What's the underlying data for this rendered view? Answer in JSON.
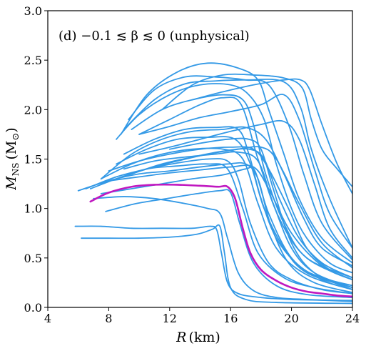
{
  "chart_data": {
    "type": "line",
    "annotation": "(d) −0.1 ≲ β ≲ 0 (unphysical)",
    "xlabel_main": "R",
    "xlabel_unit": "(km)",
    "ylabel_main": "M",
    "ylabel_sub": "NS",
    "ylabel_unit": "(M",
    "ylabel_unit_sym": "⊙",
    "ylabel_close": ")",
    "xlim": [
      4,
      24
    ],
    "ylim": [
      0.0,
      3.0
    ],
    "xticks": [
      4,
      8,
      12,
      16,
      20,
      24
    ],
    "yticks": [
      0.0,
      0.5,
      1.0,
      1.5,
      2.0,
      2.5,
      3.0
    ],
    "grid": false,
    "colors": {
      "family": "#3399e6",
      "highlight": "#c018c0"
    },
    "series": [
      {
        "style": "family",
        "x": [
          8.8,
          10.5,
          12.5,
          14.5,
          16.5,
          17.8,
          18.5,
          19.5,
          20.5,
          22,
          24
        ],
        "y": [
          1.75,
          2.15,
          2.38,
          2.47,
          2.42,
          2.3,
          2.0,
          1.55,
          1.1,
          0.7,
          0.45
        ]
      },
      {
        "style": "family",
        "x": [
          9.3,
          11,
          13,
          15,
          17,
          18.5,
          19.8,
          20.8,
          22,
          24
        ],
        "y": [
          1.9,
          2.2,
          2.33,
          2.33,
          2.3,
          2.25,
          1.85,
          1.35,
          0.85,
          0.48
        ]
      },
      {
        "style": "family",
        "x": [
          9,
          11,
          13,
          15,
          17,
          19.5,
          20.6,
          21.3,
          22.5,
          24
        ],
        "y": [
          1.8,
          2.1,
          2.26,
          2.29,
          2.3,
          2.28,
          2.02,
          1.6,
          1.1,
          0.6
        ]
      },
      {
        "style": "family",
        "x": [
          11.5,
          13.5,
          15.5,
          17.5,
          19.5,
          20.7,
          21.3,
          22,
          23,
          24
        ],
        "y": [
          2.0,
          2.25,
          2.35,
          2.35,
          2.32,
          2.22,
          1.9,
          1.6,
          1.4,
          1.22
        ]
      },
      {
        "style": "family",
        "x": [
          8.5,
          10,
          12,
          14,
          16,
          17.2,
          18.2,
          19,
          20,
          21,
          22.5,
          24
        ],
        "y": [
          1.7,
          1.95,
          2.15,
          2.25,
          2.25,
          2.15,
          1.9,
          1.45,
          1.0,
          0.7,
          0.45,
          0.35
        ]
      },
      {
        "style": "family",
        "x": [
          9.5,
          11.5,
          13.5,
          15.5,
          16.8,
          17.5,
          18.3,
          19.5,
          21,
          24
        ],
        "y": [
          1.8,
          2.0,
          2.1,
          2.15,
          2.1,
          1.85,
          1.35,
          0.85,
          0.5,
          0.3
        ]
      },
      {
        "style": "family",
        "x": [
          10,
          12,
          14,
          15.5,
          16.7,
          17.8,
          19.2,
          21,
          24
        ],
        "y": [
          1.75,
          1.9,
          2.05,
          2.12,
          2.05,
          1.5,
          0.9,
          0.5,
          0.28
        ]
      },
      {
        "style": "family",
        "x": [
          9,
          11,
          13,
          15,
          16.5,
          17.2,
          18,
          19,
          20.5,
          22,
          24
        ],
        "y": [
          1.55,
          1.7,
          1.8,
          1.82,
          1.8,
          1.55,
          1.1,
          0.7,
          0.42,
          0.3,
          0.22
        ]
      },
      {
        "style": "family",
        "x": [
          7.5,
          9.5,
          11.5,
          13.5,
          15.5,
          17,
          18.3,
          19.5,
          20.8,
          22,
          24
        ],
        "y": [
          1.3,
          1.55,
          1.7,
          1.78,
          1.8,
          1.82,
          1.7,
          1.35,
          0.9,
          0.6,
          0.42
        ]
      },
      {
        "style": "family",
        "x": [
          10,
          12,
          14,
          16,
          18,
          19.5,
          20.5,
          21.5,
          22.5,
          24
        ],
        "y": [
          1.75,
          1.83,
          1.92,
          1.98,
          2.05,
          2.15,
          1.9,
          1.4,
          0.95,
          0.6
        ]
      },
      {
        "style": "family",
        "x": [
          8.5,
          10.5,
          12.5,
          14.5,
          16.3,
          17.3,
          18.2,
          19.5,
          21,
          24
        ],
        "y": [
          1.45,
          1.6,
          1.7,
          1.72,
          1.7,
          1.45,
          1.0,
          0.6,
          0.35,
          0.2
        ]
      },
      {
        "style": "family",
        "x": [
          7.5,
          9.5,
          11.5,
          13.5,
          15.5,
          16.8,
          17.8,
          19,
          21,
          24
        ],
        "y": [
          1.3,
          1.45,
          1.55,
          1.6,
          1.6,
          1.5,
          1.05,
          0.6,
          0.33,
          0.18
        ]
      },
      {
        "style": "family",
        "x": [
          8,
          10,
          12,
          14,
          16,
          17.5,
          18.5,
          19.8,
          21,
          22.5,
          24
        ],
        "y": [
          1.38,
          1.48,
          1.55,
          1.6,
          1.62,
          1.6,
          1.4,
          1.0,
          0.6,
          0.38,
          0.28
        ]
      },
      {
        "style": "family",
        "x": [
          6.8,
          8.5,
          10.5,
          12.5,
          14.5,
          15.8,
          16.8,
          17.8,
          19.5,
          21.5,
          24
        ],
        "y": [
          1.2,
          1.3,
          1.4,
          1.43,
          1.45,
          1.4,
          1.0,
          0.55,
          0.3,
          0.2,
          0.14
        ]
      },
      {
        "style": "family",
        "x": [
          6.5,
          8.5,
          10.5,
          12.5,
          14.5,
          15.8,
          16.5,
          17.3,
          18.5,
          20,
          22,
          24
        ],
        "y": [
          1.2,
          1.32,
          1.4,
          1.46,
          1.5,
          1.48,
          1.3,
          0.85,
          0.45,
          0.28,
          0.18,
          0.14
        ]
      },
      {
        "style": "family",
        "x": [
          6,
          8,
          10,
          12,
          14,
          15.8,
          17,
          17.8,
          18.6,
          19.8,
          21.5,
          24
        ],
        "y": [
          1.18,
          1.28,
          1.35,
          1.38,
          1.42,
          1.45,
          1.45,
          1.3,
          0.85,
          0.45,
          0.25,
          0.15
        ]
      },
      {
        "style": "family",
        "x": [
          7.5,
          9.5,
          11.5,
          13.5,
          15.5,
          17,
          17.6,
          18.5,
          20,
          22,
          24
        ],
        "y": [
          1.15,
          1.2,
          1.25,
          1.3,
          1.34,
          1.4,
          1.38,
          0.95,
          0.5,
          0.28,
          0.18
        ]
      },
      {
        "style": "family",
        "x": [
          7.5,
          9.5,
          11.5,
          13.5,
          15.5,
          17.2,
          18.2,
          19.2,
          20.5,
          22,
          24
        ],
        "y": [
          1.25,
          1.35,
          1.45,
          1.52,
          1.58,
          1.6,
          1.5,
          1.1,
          0.7,
          0.45,
          0.3
        ]
      },
      {
        "style": "family",
        "x": [
          8.5,
          10.5,
          12.5,
          14.5,
          16.5,
          18,
          19,
          20.5,
          22,
          24
        ],
        "y": [
          1.3,
          1.4,
          1.48,
          1.55,
          1.6,
          1.62,
          1.5,
          1.05,
          0.65,
          0.4
        ]
      },
      {
        "style": "family",
        "x": [
          8,
          10,
          12,
          14,
          16,
          17.5,
          18.5,
          20,
          22,
          24
        ],
        "y": [
          1.28,
          1.32,
          1.36,
          1.39,
          1.42,
          1.42,
          1.2,
          0.75,
          0.42,
          0.28
        ]
      },
      {
        "style": "family",
        "x": [
          7.8,
          9.8,
          11.8,
          13.8,
          15.3,
          16,
          16.6,
          17.5,
          19,
          21,
          24
        ],
        "y": [
          0.97,
          1.05,
          1.1,
          1.15,
          1.18,
          1.16,
          0.85,
          0.45,
          0.22,
          0.13,
          0.1
        ]
      },
      {
        "style": "family",
        "x": [
          5.8,
          7.5,
          9.5,
          11.5,
          13.5,
          14.7,
          15.1,
          15.4,
          15.8,
          16.5,
          18,
          20,
          24
        ],
        "y": [
          0.82,
          0.82,
          0.8,
          0.8,
          0.8,
          0.82,
          0.78,
          0.55,
          0.25,
          0.14,
          0.1,
          0.08,
          0.07
        ]
      },
      {
        "style": "family",
        "x": [
          6.2,
          8,
          10,
          12,
          13.8,
          14.8,
          15.3,
          15.6,
          16,
          17,
          19,
          24
        ],
        "y": [
          0.7,
          0.7,
          0.7,
          0.71,
          0.74,
          0.79,
          0.82,
          0.55,
          0.2,
          0.08,
          0.05,
          0.04
        ]
      },
      {
        "style": "family",
        "x": [
          7,
          9,
          11,
          13,
          14.5,
          15.3,
          15.8,
          16.5,
          17.5,
          19,
          21,
          24
        ],
        "y": [
          1.1,
          1.12,
          1.1,
          1.05,
          1.0,
          0.95,
          0.7,
          0.35,
          0.17,
          0.1,
          0.08,
          0.06
        ]
      },
      {
        "style": "family",
        "x": [
          12,
          14,
          15.8,
          17.2,
          18,
          18.8,
          20,
          21.5,
          24
        ],
        "y": [
          1.6,
          1.66,
          1.7,
          1.7,
          1.6,
          1.2,
          0.65,
          0.35,
          0.18
        ]
      },
      {
        "style": "family",
        "x": [
          9,
          11,
          13,
          15,
          16.5,
          17.8,
          18.8,
          20,
          21.5,
          24
        ],
        "y": [
          1.4,
          1.48,
          1.52,
          1.55,
          1.57,
          1.48,
          1.05,
          0.6,
          0.35,
          0.2
        ]
      },
      {
        "style": "family",
        "x": [
          10,
          12,
          14,
          16,
          18,
          19.5,
          20.5,
          21.5,
          22.5,
          24
        ],
        "y": [
          1.55,
          1.62,
          1.7,
          1.78,
          1.85,
          1.88,
          1.7,
          1.25,
          0.8,
          0.5
        ]
      },
      {
        "style": "family",
        "x": [
          13.5,
          15.5,
          17.5,
          19.5,
          20.6,
          21.2,
          22,
          23,
          24
        ],
        "y": [
          2.1,
          2.18,
          2.25,
          2.3,
          2.3,
          2.2,
          1.85,
          1.45,
          1.15
        ]
      },
      {
        "style": "highlight",
        "x": [
          6.8,
          8,
          9.5,
          11,
          12.5,
          14,
          15.2,
          15.8,
          16.3,
          16.8,
          17.3,
          18,
          19,
          20,
          21,
          22,
          23,
          24
        ],
        "y": [
          1.07,
          1.16,
          1.22,
          1.24,
          1.24,
          1.23,
          1.22,
          1.22,
          1.1,
          0.8,
          0.55,
          0.38,
          0.27,
          0.2,
          0.16,
          0.14,
          0.12,
          0.11
        ]
      }
    ]
  }
}
